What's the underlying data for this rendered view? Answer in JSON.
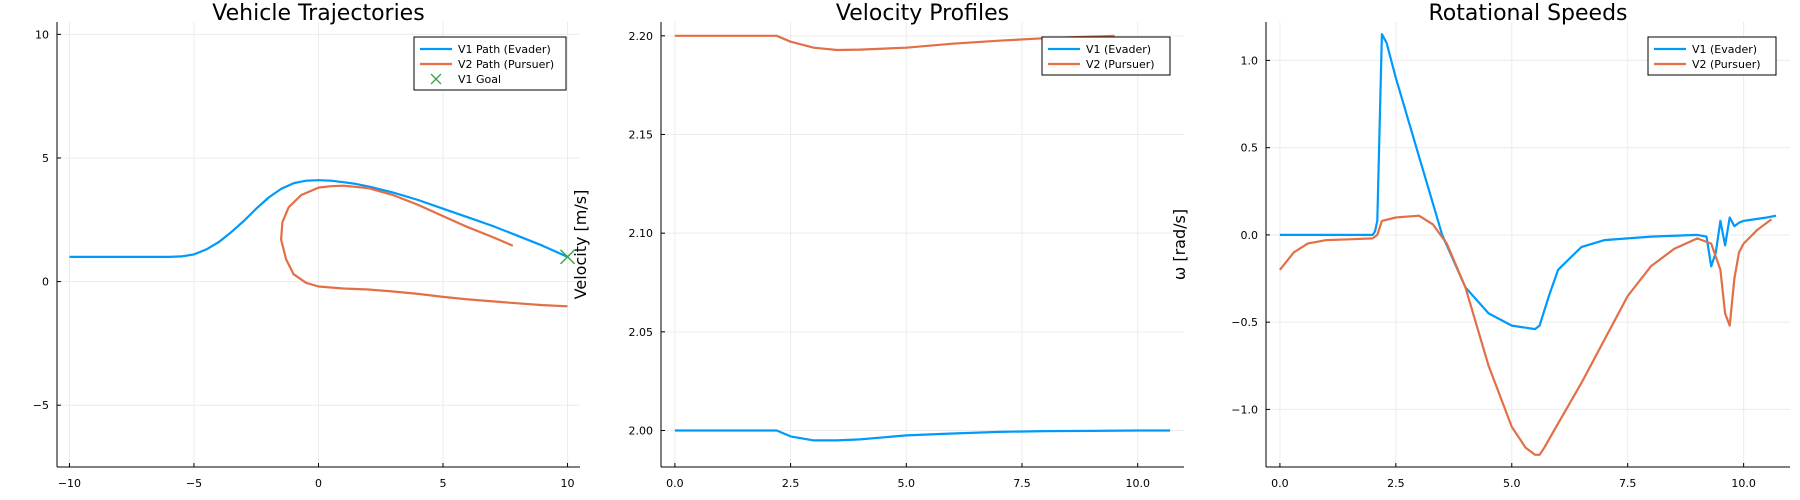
{
  "colors": {
    "series1": "#009AFA",
    "series2": "#E26F46",
    "goal": "#3EA44E",
    "grid": "#ececec",
    "axis": "#000000"
  },
  "chart_data": [
    {
      "type": "line",
      "title": "Vehicle Trajectories",
      "xlabel": "",
      "ylabel": "",
      "xlim": [
        -10.5,
        10.5
      ],
      "ylim": [
        -7.5,
        10.5
      ],
      "xticks": [
        -10,
        -5,
        0,
        5,
        10
      ],
      "xtick_labels": [
        "−10",
        "−5",
        "0",
        "5",
        "10"
      ],
      "yticks": [
        -5,
        0,
        5,
        10
      ],
      "ytick_labels": [
        "−5",
        "0",
        "5",
        "10"
      ],
      "grid": true,
      "legend_position": "top-right",
      "series": [
        {
          "name": "V1 Path (Evader)",
          "color": "#009AFA",
          "x": [
            -10,
            -9,
            -8,
            -7,
            -6,
            -5.5,
            -5,
            -4.5,
            -4,
            -3.5,
            -3,
            -2.5,
            -2,
            -1.5,
            -1,
            -0.5,
            0,
            0.5,
            1,
            1.5,
            2,
            3,
            4,
            5,
            6,
            7,
            8,
            9,
            10
          ],
          "y": [
            1,
            1,
            1,
            1,
            1,
            1.02,
            1.1,
            1.3,
            1.6,
            2,
            2.45,
            2.95,
            3.4,
            3.75,
            3.98,
            4.08,
            4.1,
            4.08,
            4.02,
            3.95,
            3.85,
            3.6,
            3.3,
            2.95,
            2.6,
            2.25,
            1.85,
            1.45,
            1
          ]
        },
        {
          "name": "V2 Path (Pursuer)",
          "color": "#E26F46",
          "x": [
            10,
            9,
            8,
            7,
            6,
            5,
            4,
            3,
            2,
            1,
            0,
            -0.5,
            -1,
            -1.3,
            -1.5,
            -1.45,
            -1.2,
            -0.7,
            0,
            0.5,
            1,
            2,
            3,
            4,
            5,
            6,
            7,
            7.8
          ],
          "y": [
            -1,
            -0.95,
            -0.88,
            -0.8,
            -0.72,
            -0.62,
            -0.5,
            -0.4,
            -0.32,
            -0.28,
            -0.2,
            -0.05,
            0.3,
            0.9,
            1.7,
            2.4,
            3.0,
            3.5,
            3.8,
            3.86,
            3.88,
            3.78,
            3.5,
            3.1,
            2.65,
            2.2,
            1.8,
            1.45
          ]
        },
        {
          "name": "V1 Goal",
          "color": "#3EA44E",
          "marker": "x",
          "x": [
            10
          ],
          "y": [
            1
          ]
        }
      ]
    },
    {
      "type": "line",
      "title": "Velocity Profiles",
      "xlabel": "",
      "ylabel": "Velocity [m/s]",
      "xlim": [
        -0.3,
        11.0
      ],
      "ylim": [
        1.9815,
        2.207
      ],
      "xticks": [
        0,
        2.5,
        5,
        7.5,
        10
      ],
      "xtick_labels": [
        "0.0",
        "2.5",
        "5.0",
        "7.5",
        "10.0"
      ],
      "yticks": [
        2.0,
        2.05,
        2.1,
        2.15,
        2.2
      ],
      "ytick_labels": [
        "2.00",
        "2.05",
        "2.10",
        "2.15",
        "2.20"
      ],
      "grid": true,
      "legend_position": "top-right",
      "series": [
        {
          "name": "V1 (Evader)",
          "color": "#009AFA",
          "x": [
            0,
            1,
            2,
            2.2,
            2.5,
            3,
            3.5,
            4,
            5,
            6,
            7,
            8,
            9,
            10,
            10.7
          ],
          "y": [
            2.0,
            2.0,
            2.0,
            2.0,
            1.997,
            1.995,
            1.995,
            1.9955,
            1.9975,
            1.9985,
            1.9993,
            1.9997,
            1.9998,
            2.0,
            2.0
          ]
        },
        {
          "name": "V2 (Pursuer)",
          "color": "#E26F46",
          "x": [
            0,
            1,
            2,
            2.2,
            2.5,
            3,
            3.5,
            4,
            5,
            6,
            7,
            8,
            9,
            9.5
          ],
          "y": [
            2.2,
            2.2,
            2.2,
            2.2,
            2.197,
            2.194,
            2.1928,
            2.193,
            2.194,
            2.196,
            2.1975,
            2.1988,
            2.1996,
            2.2
          ]
        }
      ]
    },
    {
      "type": "line",
      "title": "Rotational Speeds",
      "xlabel": "",
      "ylabel": "ω [rad/s]",
      "xlim": [
        -0.3,
        11.0
      ],
      "ylim": [
        -1.33,
        1.22
      ],
      "xticks": [
        0,
        2.5,
        5,
        7.5,
        10
      ],
      "xtick_labels": [
        "0.0",
        "2.5",
        "5.0",
        "7.5",
        "10.0"
      ],
      "yticks": [
        -1.0,
        -0.5,
        0.0,
        0.5,
        1.0
      ],
      "ytick_labels": [
        "−1.0",
        "−0.5",
        "0.0",
        "0.5",
        "1.0"
      ],
      "grid": true,
      "legend_position": "top-right",
      "series": [
        {
          "name": "V1 (Evader)",
          "color": "#009AFA",
          "x": [
            0,
            1,
            2,
            2.05,
            2.1,
            2.2,
            2.3,
            2.5,
            3,
            3.5,
            4,
            4.5,
            5,
            5.5,
            5.6,
            5.8,
            6,
            6.5,
            7,
            8,
            9,
            9.2,
            9.3,
            9.4,
            9.5,
            9.6,
            9.7,
            9.8,
            9.9,
            10,
            10.5,
            10.7
          ],
          "y": [
            0,
            0,
            0,
            0.02,
            0.08,
            1.15,
            1.1,
            0.9,
            0.45,
            0.0,
            -0.3,
            -0.45,
            -0.52,
            -0.54,
            -0.52,
            -0.35,
            -0.2,
            -0.07,
            -0.03,
            -0.01,
            0,
            -0.01,
            -0.18,
            -0.1,
            0.08,
            -0.06,
            0.1,
            0.05,
            0.07,
            0.08,
            0.1,
            0.11
          ]
        },
        {
          "name": "V2 (Pursuer)",
          "color": "#E26F46",
          "x": [
            0,
            0.3,
            0.6,
            1,
            1.5,
            2,
            2.1,
            2.2,
            2.5,
            3,
            3.3,
            3.6,
            4,
            4.5,
            5,
            5.3,
            5.5,
            5.6,
            5.7,
            6,
            6.5,
            7,
            7.5,
            8,
            8.5,
            9,
            9.3,
            9.5,
            9.6,
            9.7,
            9.8,
            9.9,
            10,
            10.3,
            10.6
          ],
          "y": [
            -0.2,
            -0.1,
            -0.05,
            -0.03,
            -0.025,
            -0.02,
            0.0,
            0.08,
            0.1,
            0.11,
            0.06,
            -0.05,
            -0.3,
            -0.75,
            -1.1,
            -1.22,
            -1.26,
            -1.26,
            -1.22,
            -1.08,
            -0.85,
            -0.6,
            -0.35,
            -0.18,
            -0.08,
            -0.02,
            -0.05,
            -0.2,
            -0.45,
            -0.52,
            -0.25,
            -0.1,
            -0.05,
            0.03,
            0.09
          ]
        }
      ]
    }
  ]
}
